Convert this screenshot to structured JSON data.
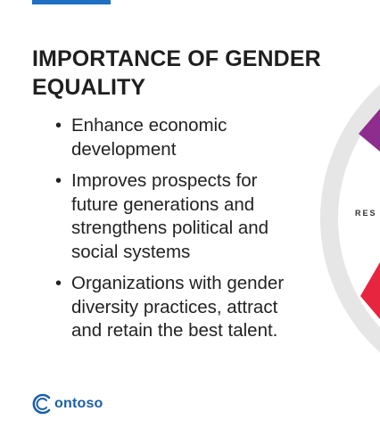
{
  "slide": {
    "title": "IMPORTANCE OF GENDER EQUALITY",
    "bullets": [
      "Enhance economic development",
      "Improves prospects for future generations and strengthens political and social systems",
      "Organizations with gender diversity practices, attract and retain the best talent."
    ],
    "bullet_symbol": "•",
    "logo_text": "ontoso",
    "logo_icon": "contoso-logo-icon",
    "graphic_label": "RES"
  },
  "colors": {
    "accent_bar": "#1f6fc5",
    "logo": "#1d5fa8",
    "ring": "#e6e6e6",
    "segment_purple": "#8e2d8e",
    "segment_red": "#e8253f"
  }
}
